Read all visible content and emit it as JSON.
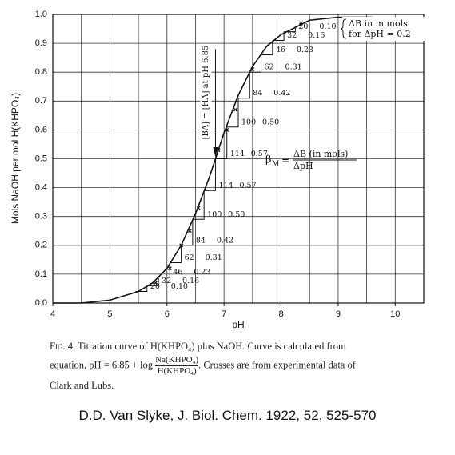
{
  "chart_data": {
    "type": "titration",
    "ylabel": "Mols NaOH per mol H(KHPO₄)",
    "xlabel": "pH",
    "xlim": [
      4,
      10.5
    ],
    "ylim": [
      0,
      1
    ],
    "xticks": [
      4,
      5,
      6,
      7,
      8,
      9,
      10
    ],
    "yticks": [
      {
        "value": 0,
        "label": "0.0"
      },
      0.1,
      0.2,
      0.3,
      0.4,
      0.5,
      0.6,
      0.7,
      0.8,
      0.9,
      {
        "value": 1,
        "label": "1.0"
      }
    ],
    "x_grid": [
      4,
      4.5,
      5,
      5.5,
      6,
      6.5,
      7,
      7.5,
      8,
      8.5,
      9,
      9.5,
      10,
      10.5
    ],
    "grid": true,
    "curve": {
      "color": "#111111",
      "x": [
        4,
        4.5,
        5,
        5.5,
        5.75,
        6,
        6.25,
        6.5,
        6.75,
        7,
        7.25,
        7.5,
        7.75,
        8,
        8.5,
        9,
        9.6
      ],
      "values": [
        0.0,
        0.0,
        0.01,
        0.04,
        0.07,
        0.12,
        0.2,
        0.31,
        0.44,
        0.59,
        0.72,
        0.82,
        0.89,
        0.93,
        0.98,
        0.99,
        0.99
      ]
    },
    "crosses": {
      "x": [
        5.8,
        6.05,
        6.25,
        6.4,
        6.55,
        6.9,
        7.05,
        7.2,
        7.5,
        8.35
      ],
      "values": [
        0.07,
        0.12,
        0.2,
        0.25,
        0.33,
        0.53,
        0.6,
        0.67,
        0.81,
        0.97
      ]
    },
    "staircase": {
      "x": [
        5.45,
        5.65,
        5.85,
        6.05,
        6.25,
        6.45,
        6.65,
        6.85,
        7.05,
        7.25,
        7.45,
        7.65,
        7.85,
        8.05,
        8.25
      ],
      "values": [
        0.04,
        0.06,
        0.09,
        0.14,
        0.2,
        0.29,
        0.39,
        0.5,
        0.61,
        0.71,
        0.8,
        0.86,
        0.91,
        0.94,
        0.96
      ],
      "dB": [
        "20",
        "32",
        "46",
        "62",
        "84",
        "100",
        "114",
        "114",
        "100",
        "84",
        "62",
        "46",
        "32",
        "20"
      ],
      "beta": [
        "0.10",
        "0.16",
        "0.23",
        "0.31",
        "0.42",
        "0.50",
        "0.57",
        "0.57",
        "0.50",
        "0.42",
        "0.31",
        "0.23",
        "0.16",
        "0.10"
      ]
    },
    "midpoint": {
      "x": 6.85,
      "label": "[BA] = [HA] at pH 6.85"
    },
    "legend_box": [
      "ΔB in m.mols",
      "for ΔpH = 0.2"
    ],
    "beta_formula": {
      "symbol": "β",
      "subscript": "M",
      "numerator": "ΔB (in mols)",
      "denominator": "ΔpH"
    },
    "caption": {
      "label": "Fig. 4.",
      "text1": "Titration curve of H(KHPO₄) plus NaOH.   Curve is calculated from equation, pH = 6.85 + log",
      "numerator": "Na(KHPO₄)",
      "denominator": "H(KHPO₄)",
      "text2": ".  Crosses are from experimental data of Clark and Lubs."
    },
    "source": "D.D. Van Slyke, J. Biol. Chem. 1922, 52, 525-570"
  }
}
